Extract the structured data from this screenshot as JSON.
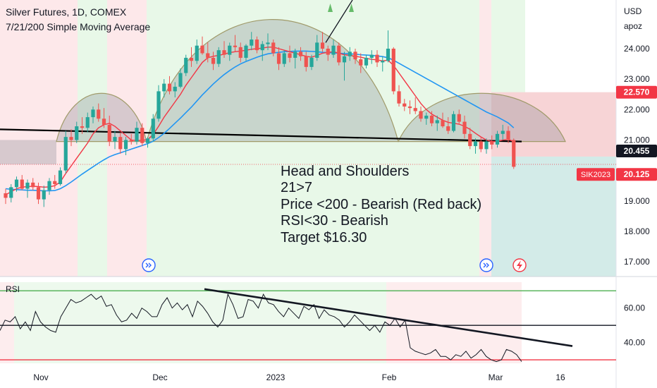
{
  "header": {
    "title": "Silver Futures, 1D, COMEX",
    "indicator": "7/21/200 Simple Moving Average"
  },
  "price_axis": {
    "currency": "USD",
    "unit": "apoz"
  },
  "annotation": {
    "lines": [
      "Head and Shoulders",
      "21>7",
      "Price <200 - Bearish (Red back)",
      "RSI<30 - Bearish",
      "Target $16.30"
    ]
  },
  "rsi_pane": {
    "label": "RSI"
  },
  "colors": {
    "bull": "#26a69a",
    "bear": "#ef5350",
    "ma7": "#f23645",
    "ma21": "#2196f3",
    "ma200": "#000000",
    "bg_green": "#e8f8e8",
    "bg_red": "#fde8ea",
    "target_zone": "#d3ebe8",
    "stop_zone": "#f7d4d6"
  },
  "icons": [
    "forward-circle-icon",
    "forward-circle-icon",
    "lightning-event-icon",
    "up-triangle-icon"
  ],
  "chart_data": [
    {
      "type": "candlestick",
      "title": "Silver Futures, 1D, COMEX",
      "ylim": [
        16.6,
        25.2
      ],
      "y_ticks": [
        "24.000",
        "23.000",
        "22.000",
        "21.000",
        "19.000",
        "18.000",
        "17.000"
      ],
      "x_ticks": [
        "Nov",
        "Dec",
        "2023",
        "Feb",
        "Mar",
        "16"
      ],
      "price_labels": [
        {
          "text": "22.570",
          "value": 22.57,
          "color": "#f23645"
        },
        {
          "text": "20.455",
          "value": 20.455,
          "color": "#131722"
        },
        {
          "text": "20.125",
          "value": 20.125,
          "color": "#f23645"
        }
      ],
      "symbol_label": "SIK2023",
      "candles": [
        [
          19.25,
          19.4,
          18.9,
          19.1
        ],
        [
          19.1,
          19.55,
          18.95,
          19.45
        ],
        [
          19.45,
          19.8,
          19.3,
          19.7
        ],
        [
          19.7,
          19.85,
          19.35,
          19.4
        ],
        [
          19.4,
          19.7,
          19.1,
          19.6
        ],
        [
          19.6,
          19.75,
          19.35,
          19.45
        ],
        [
          19.45,
          19.6,
          18.9,
          19.05
        ],
        [
          19.05,
          19.5,
          18.8,
          19.35
        ],
        [
          19.35,
          19.75,
          19.2,
          19.65
        ],
        [
          19.65,
          19.85,
          19.4,
          19.55
        ],
        [
          19.55,
          20.1,
          19.5,
          20.0
        ],
        [
          20.0,
          21.3,
          19.9,
          21.1
        ],
        [
          21.1,
          21.35,
          20.8,
          21.0
        ],
        [
          21.0,
          21.6,
          20.9,
          21.45
        ],
        [
          21.45,
          21.75,
          21.2,
          21.4
        ],
        [
          21.4,
          21.9,
          21.25,
          21.75
        ],
        [
          21.75,
          22.1,
          21.55,
          22.0
        ],
        [
          22.0,
          22.2,
          21.6,
          21.7
        ],
        [
          21.7,
          22.05,
          21.4,
          21.5
        ],
        [
          21.5,
          21.8,
          20.8,
          20.95
        ],
        [
          20.95,
          21.3,
          20.7,
          21.1
        ],
        [
          21.1,
          21.25,
          20.55,
          20.7
        ],
        [
          20.7,
          21.1,
          20.5,
          21.0
        ],
        [
          21.0,
          21.2,
          20.85,
          20.95
        ],
        [
          20.95,
          21.6,
          20.85,
          21.4
        ],
        [
          21.4,
          21.55,
          20.8,
          20.9
        ],
        [
          20.9,
          21.1,
          20.75,
          21.05
        ],
        [
          21.05,
          21.85,
          20.95,
          21.7
        ],
        [
          21.7,
          22.8,
          21.6,
          22.6
        ],
        [
          22.6,
          23.0,
          22.4,
          22.85
        ],
        [
          22.85,
          23.1,
          22.5,
          22.6
        ],
        [
          22.6,
          22.9,
          22.4,
          22.75
        ],
        [
          22.75,
          23.35,
          22.7,
          23.2
        ],
        [
          23.2,
          23.8,
          23.1,
          23.7
        ],
        [
          23.7,
          24.05,
          23.4,
          23.6
        ],
        [
          23.6,
          24.3,
          23.5,
          24.1
        ],
        [
          24.1,
          24.4,
          23.8,
          23.85
        ],
        [
          23.85,
          24.2,
          23.55,
          23.7
        ],
        [
          23.7,
          23.9,
          23.3,
          23.5
        ],
        [
          23.5,
          24.05,
          23.4,
          23.95
        ],
        [
          23.95,
          24.25,
          23.7,
          23.8
        ],
        [
          23.8,
          24.2,
          23.6,
          24.1
        ],
        [
          24.1,
          24.45,
          23.9,
          24.05
        ],
        [
          24.05,
          24.2,
          23.55,
          23.7
        ],
        [
          23.7,
          24.15,
          23.6,
          24.1
        ],
        [
          24.1,
          24.55,
          23.95,
          24.3
        ],
        [
          24.3,
          24.4,
          23.85,
          23.95
        ],
        [
          23.95,
          24.25,
          23.6,
          24.15
        ],
        [
          24.15,
          24.5,
          23.95,
          24.2
        ],
        [
          24.2,
          24.3,
          23.75,
          23.85
        ],
        [
          23.85,
          24.05,
          23.3,
          23.5
        ],
        [
          23.5,
          23.95,
          23.4,
          23.85
        ],
        [
          23.85,
          24.1,
          23.55,
          23.7
        ],
        [
          23.7,
          24.0,
          23.35,
          23.9
        ],
        [
          23.9,
          24.05,
          23.6,
          23.75
        ],
        [
          23.75,
          23.9,
          23.25,
          23.4
        ],
        [
          23.4,
          23.8,
          23.3,
          23.7
        ],
        [
          23.7,
          24.45,
          23.6,
          24.2
        ],
        [
          24.2,
          24.55,
          23.9,
          24.0
        ],
        [
          24.0,
          24.1,
          23.6,
          23.8
        ],
        [
          23.8,
          24.3,
          23.7,
          24.1
        ],
        [
          24.1,
          24.2,
          23.45,
          23.55
        ],
        [
          23.55,
          23.9,
          22.95,
          23.75
        ],
        [
          23.75,
          24.05,
          23.6,
          23.9
        ],
        [
          23.9,
          24.0,
          23.5,
          23.65
        ],
        [
          23.65,
          23.85,
          23.2,
          23.45
        ],
        [
          23.45,
          23.8,
          23.35,
          23.7
        ],
        [
          23.7,
          23.95,
          23.5,
          23.8
        ],
        [
          23.8,
          23.95,
          23.4,
          23.55
        ],
        [
          23.55,
          23.75,
          23.25,
          23.6
        ],
        [
          23.6,
          24.6,
          23.55,
          24.0
        ],
        [
          24.0,
          24.05,
          22.5,
          22.6
        ],
        [
          22.6,
          22.8,
          22.1,
          22.2
        ],
        [
          22.2,
          22.35,
          21.95,
          22.1
        ],
        [
          22.1,
          22.3,
          21.85,
          22.05
        ],
        [
          22.05,
          22.4,
          21.85,
          21.95
        ],
        [
          21.95,
          22.1,
          21.6,
          21.7
        ],
        [
          21.7,
          21.9,
          21.5,
          21.8
        ],
        [
          21.8,
          21.95,
          21.45,
          21.55
        ],
        [
          21.55,
          21.8,
          21.3,
          21.65
        ],
        [
          21.65,
          21.9,
          21.4,
          21.45
        ],
        [
          21.45,
          21.75,
          21.2,
          21.3
        ],
        [
          21.3,
          21.95,
          21.25,
          21.85
        ],
        [
          21.85,
          22.0,
          21.5,
          21.6
        ],
        [
          21.6,
          21.8,
          21.05,
          21.2
        ],
        [
          21.2,
          21.4,
          20.7,
          20.8
        ],
        [
          20.8,
          21.05,
          20.55,
          20.95
        ],
        [
          20.95,
          21.1,
          20.6,
          20.7
        ],
        [
          20.7,
          21.05,
          20.55,
          20.95
        ],
        [
          20.95,
          21.15,
          20.7,
          20.85
        ],
        [
          20.85,
          21.3,
          20.75,
          21.2
        ],
        [
          21.2,
          21.5,
          21.0,
          21.3
        ],
        [
          21.3,
          21.45,
          20.9,
          21.0
        ],
        [
          21.0,
          21.05,
          20.05,
          20.12
        ]
      ],
      "ma7": [
        19.2,
        19.3,
        19.4,
        19.45,
        19.47,
        19.48,
        19.47,
        19.45,
        19.46,
        19.5,
        19.62,
        19.9,
        20.15,
        20.4,
        20.65,
        20.9,
        21.2,
        21.4,
        21.5,
        21.55,
        21.45,
        21.3,
        21.15,
        21.0,
        20.98,
        20.99,
        21.01,
        21.18,
        21.45,
        21.75,
        22.0,
        22.25,
        22.5,
        22.8,
        23.05,
        23.3,
        23.55,
        23.7,
        23.75,
        23.78,
        23.82,
        23.87,
        23.9,
        23.92,
        23.95,
        23.98,
        24.0,
        24.02,
        24.05,
        24.05,
        24.0,
        23.95,
        23.9,
        23.85,
        23.8,
        23.75,
        23.72,
        23.78,
        23.85,
        23.88,
        23.9,
        23.85,
        23.8,
        23.78,
        23.75,
        23.72,
        23.68,
        23.65,
        23.63,
        23.6,
        23.62,
        23.45,
        23.2,
        22.95,
        22.7,
        22.45,
        22.2,
        22.0,
        21.85,
        21.75,
        21.65,
        21.58,
        21.55,
        21.52,
        21.45,
        21.35,
        21.22,
        21.1,
        21.0,
        20.95,
        20.95,
        21.0,
        21.02,
        20.95
      ],
      "ma21": [
        19.4,
        19.38,
        19.37,
        19.36,
        19.35,
        19.35,
        19.34,
        19.33,
        19.33,
        19.34,
        19.4,
        19.5,
        19.62,
        19.75,
        19.88,
        20.0,
        20.12,
        20.24,
        20.35,
        20.45,
        20.52,
        20.58,
        20.64,
        20.7,
        20.76,
        20.82,
        20.88,
        20.96,
        21.08,
        21.22,
        21.38,
        21.55,
        21.72,
        21.9,
        22.08,
        22.28,
        22.48,
        22.66,
        22.84,
        23.0,
        23.15,
        23.28,
        23.4,
        23.5,
        23.58,
        23.65,
        23.72,
        23.78,
        23.83,
        23.86,
        23.88,
        23.9,
        23.91,
        23.92,
        23.92,
        23.92,
        23.91,
        23.9,
        23.88,
        23.87,
        23.86,
        23.85,
        23.84,
        23.83,
        23.82,
        23.8,
        23.79,
        23.78,
        23.76,
        23.74,
        23.7,
        23.62,
        23.52,
        23.42,
        23.32,
        23.22,
        23.12,
        23.02,
        22.92,
        22.82,
        22.72,
        22.62,
        22.52,
        22.42,
        22.32,
        22.22,
        22.12,
        22.02,
        21.92,
        21.84,
        21.76,
        21.66,
        21.56,
        21.4
      ],
      "ma200": {
        "start": 21.35,
        "end": 20.95
      },
      "patterns": [
        {
          "name": "left-shoulder",
          "base": 20.95,
          "peak": 22.5
        },
        {
          "name": "head",
          "base": 20.95,
          "peak": 25.0
        },
        {
          "name": "right-shoulder",
          "base": 20.95,
          "peak": 22.5
        }
      ],
      "trade_zone": {
        "entry": 20.455,
        "stop": 22.57,
        "target": 16.3
      }
    },
    {
      "type": "line",
      "title": "RSI",
      "ylim": [
        28,
        75
      ],
      "y_ticks": [
        "60.00",
        "40.00"
      ],
      "levels": [
        70,
        50,
        30
      ],
      "values": [
        47,
        53,
        52,
        55,
        48,
        52,
        47,
        58,
        52,
        49,
        47,
        46,
        55,
        60,
        65,
        63,
        64,
        66,
        68,
        65,
        67,
        61,
        62,
        56,
        52,
        53,
        57,
        54,
        60,
        58,
        55,
        55,
        62,
        66,
        60,
        63,
        59,
        62,
        55,
        64,
        61,
        57,
        52,
        49,
        53,
        68,
        62,
        54,
        55,
        65,
        64,
        60,
        68,
        63,
        62,
        58,
        55,
        60,
        57,
        54,
        61,
        59,
        62,
        54,
        59,
        56,
        55,
        53,
        49,
        52,
        56,
        53,
        50,
        47,
        50,
        46,
        52,
        50,
        54,
        49,
        53,
        37,
        35,
        34,
        33,
        34,
        36,
        32,
        32,
        30,
        33,
        32,
        35,
        31,
        33,
        36,
        32,
        30,
        29,
        30,
        36,
        35,
        33,
        29
      ]
    }
  ]
}
